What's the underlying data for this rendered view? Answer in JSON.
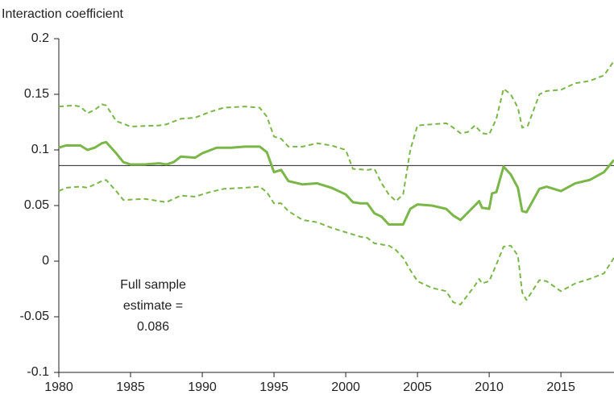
{
  "chart_data": {
    "type": "line",
    "ylabel": "Interaction coefficient",
    "xlim": [
      1980,
      2018.7
    ],
    "xticks": [
      1980,
      1985,
      1990,
      1995,
      2000,
      2005,
      2010,
      2015
    ],
    "ylim": [
      -0.1,
      0.2
    ],
    "yticks": [
      0.2,
      0.15,
      0.1,
      0.05,
      0,
      -0.05,
      -0.1
    ],
    "reference_line": 0.086,
    "reference_color": "#222222",
    "annotation": [
      "Full sample",
      "estimate ="
    ],
    "series": [
      {
        "color": "#7ab648",
        "dash": false,
        "x": [
          1980,
          1980.5,
          1981.5,
          1982,
          1982.5,
          1983,
          1983.3,
          1984,
          1984.5,
          1985,
          1986,
          1987,
          1987.5,
          1988,
          1988.5,
          1989.5,
          1990,
          1991,
          1992,
          1993,
          1994,
          1994.5,
          1995,
          1995.5,
          1996,
          1997,
          1998,
          1999,
          2000,
          2000.5,
          2001,
          2001.5,
          2002,
          2002.5,
          2003,
          2004,
          2004.5,
          2005,
          2006,
          2007,
          2007.5,
          2008,
          2009,
          2009.3,
          2009.5,
          2010,
          2010.2,
          2010.5,
          2011,
          2011.5,
          2012,
          2012.3,
          2012.6,
          2013.5,
          2014,
          2015,
          2016,
          2017,
          2018,
          2018.7
        ],
        "values": [
          0.102,
          0.104,
          0.104,
          0.1,
          0.102,
          0.106,
          0.107,
          0.097,
          0.089,
          0.087,
          0.087,
          0.088,
          0.087,
          0.089,
          0.094,
          0.093,
          0.097,
          0.102,
          0.102,
          0.103,
          0.103,
          0.098,
          0.08,
          0.082,
          0.072,
          0.069,
          0.07,
          0.066,
          0.06,
          0.053,
          0.052,
          0.052,
          0.043,
          0.04,
          0.033,
          0.033,
          0.047,
          0.051,
          0.05,
          0.047,
          0.041,
          0.037,
          0.05,
          0.054,
          0.048,
          0.047,
          0.061,
          0.062,
          0.085,
          0.078,
          0.066,
          0.045,
          0.044,
          0.065,
          0.067,
          0.063,
          0.07,
          0.073,
          0.08,
          0.091
        ]
      },
      {
        "color": "#7ab648",
        "dash": true,
        "x": [
          1980,
          1981,
          1981.5,
          1982,
          1982.5,
          1983,
          1983.3,
          1984,
          1985,
          1987,
          1987.5,
          1988.5,
          1989.5,
          1990.5,
          1991.5,
          1993,
          1994,
          1994.5,
          1995,
          1995.5,
          1996,
          1997,
          1998,
          1999,
          2000,
          2000.5,
          2001.5,
          2002,
          2002.5,
          2003,
          2003.5,
          2004,
          2004.5,
          2005,
          2007,
          2007.5,
          2008,
          2008.5,
          2009,
          2009.5,
          2010,
          2010.5,
          2011,
          2011.5,
          2012,
          2012.3,
          2012.7,
          2013.5,
          2014,
          2015,
          2016,
          2017,
          2018,
          2018.7
        ],
        "values": [
          0.139,
          0.14,
          0.139,
          0.133,
          0.136,
          0.141,
          0.14,
          0.126,
          0.121,
          0.122,
          0.123,
          0.128,
          0.129,
          0.134,
          0.138,
          0.139,
          0.138,
          0.13,
          0.112,
          0.11,
          0.103,
          0.103,
          0.106,
          0.104,
          0.1,
          0.083,
          0.082,
          0.083,
          0.07,
          0.06,
          0.054,
          0.06,
          0.1,
          0.122,
          0.124,
          0.12,
          0.115,
          0.116,
          0.122,
          0.115,
          0.114,
          0.128,
          0.155,
          0.15,
          0.138,
          0.12,
          0.122,
          0.15,
          0.153,
          0.154,
          0.16,
          0.162,
          0.167,
          0.18
        ]
      },
      {
        "color": "#7ab648",
        "dash": true,
        "x": [
          1980,
          1980.5,
          1981.5,
          1982,
          1983,
          1983.3,
          1984,
          1984.5,
          1986,
          1987,
          1987.5,
          1988.5,
          1989.5,
          1990.5,
          1991.5,
          1993,
          1994,
          1994.5,
          1995,
          1995.5,
          1996,
          1997,
          1998,
          1999,
          2000,
          2001,
          2001.5,
          2002,
          2003,
          2003.5,
          2004,
          2004.5,
          2005,
          2006,
          2007,
          2007.5,
          2008,
          2009,
          2009.3,
          2009.5,
          2010,
          2010.5,
          2011,
          2011.5,
          2012,
          2012.3,
          2012.6,
          2013.5,
          2014,
          2015,
          2016,
          2017,
          2018,
          2018.7
        ],
        "values": [
          0.063,
          0.066,
          0.067,
          0.066,
          0.072,
          0.073,
          0.063,
          0.055,
          0.056,
          0.054,
          0.053,
          0.059,
          0.058,
          0.062,
          0.065,
          0.066,
          0.067,
          0.062,
          0.052,
          0.052,
          0.045,
          0.037,
          0.035,
          0.03,
          0.026,
          0.022,
          0.021,
          0.016,
          0.014,
          0.01,
          0.003,
          -0.008,
          -0.018,
          -0.024,
          -0.027,
          -0.037,
          -0.039,
          -0.022,
          -0.016,
          -0.02,
          -0.018,
          -0.003,
          0.013,
          0.014,
          0.005,
          -0.028,
          -0.035,
          -0.017,
          -0.018,
          -0.027,
          -0.02,
          -0.016,
          -0.011,
          0.003
        ]
      }
    ]
  }
}
